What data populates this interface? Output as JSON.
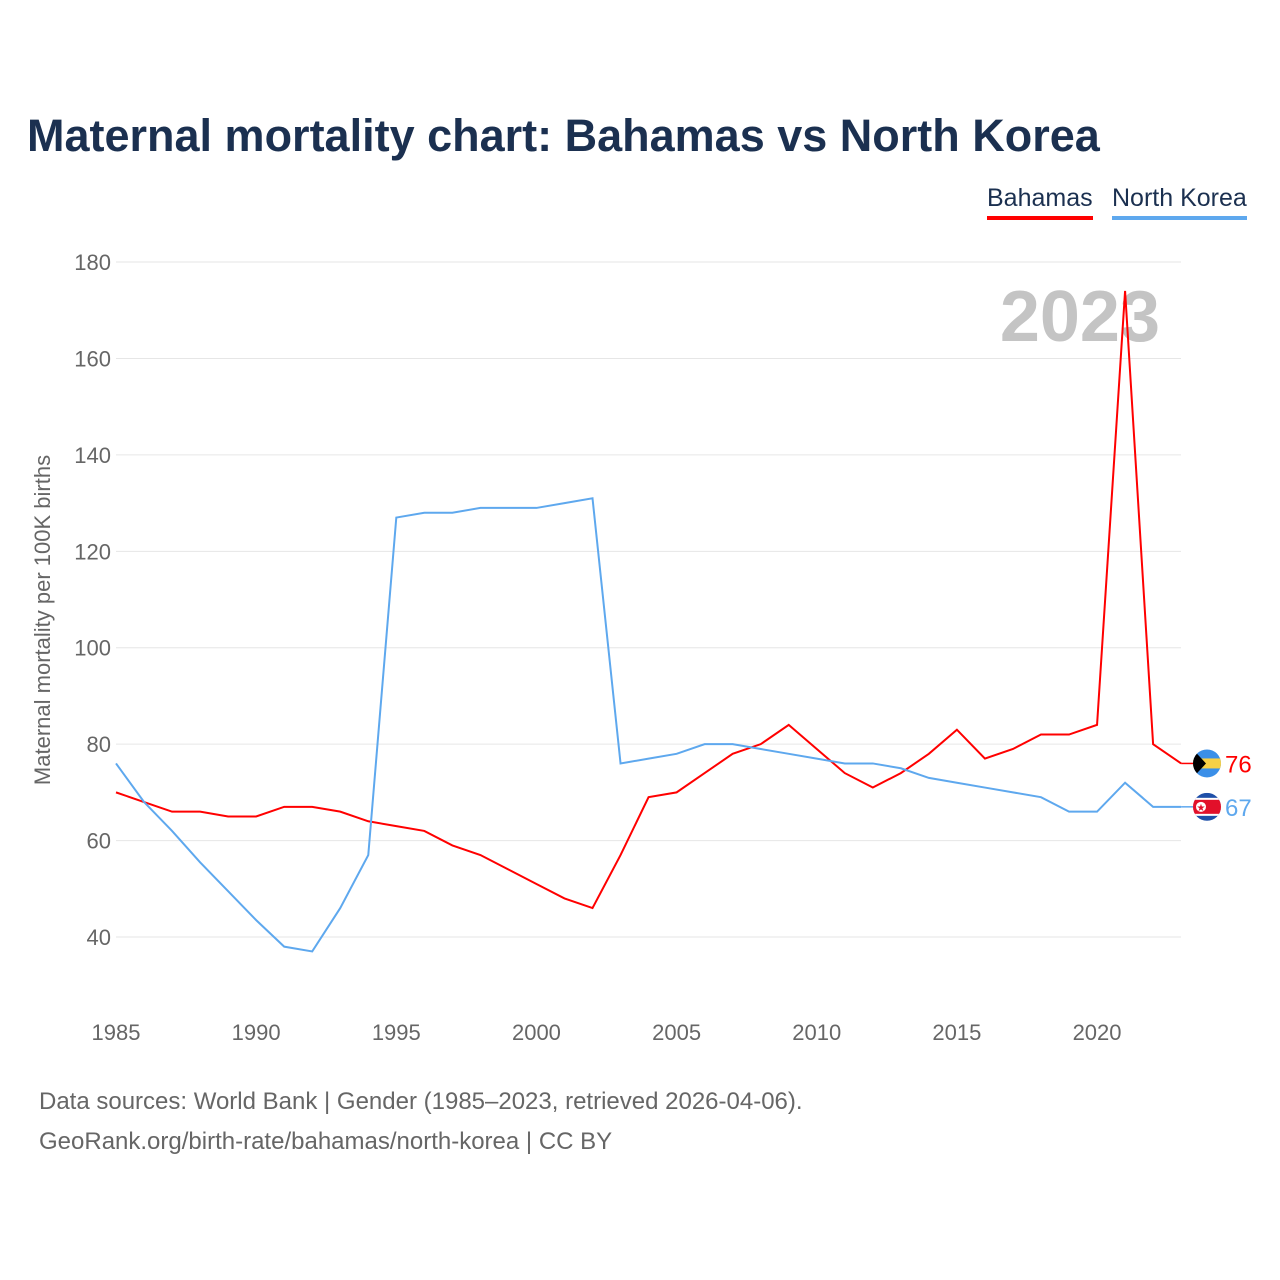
{
  "title": "Maternal mortality chart: Bahamas vs North Korea",
  "year_label": "2023",
  "sources": [
    "Data sources: World Bank | Gender (1985–2023, retrieved 2026-04-06).",
    "GeoRank.org/birth-rate/bahamas/north-korea | CC BY"
  ],
  "chart_data": {
    "type": "line",
    "title": "Maternal mortality chart: Bahamas vs North Korea",
    "xlabel": "",
    "ylabel": "Maternal mortality per 100K births",
    "xlim": [
      1985,
      2023
    ],
    "ylim": [
      30,
      180
    ],
    "xticks": [
      1985,
      1990,
      1995,
      2000,
      2005,
      2010,
      2015,
      2020
    ],
    "yticks": [
      40,
      60,
      80,
      100,
      120,
      140,
      160,
      180
    ],
    "legend_position": "top-right",
    "x": [
      1985,
      1986,
      1987,
      1988,
      1989,
      1990,
      1991,
      1992,
      1993,
      1994,
      1995,
      1996,
      1997,
      1998,
      1999,
      2000,
      2001,
      2002,
      2003,
      2004,
      2005,
      2006,
      2007,
      2008,
      2009,
      2010,
      2011,
      2012,
      2013,
      2014,
      2015,
      2016,
      2017,
      2018,
      2019,
      2020,
      2021,
      2022,
      2023
    ],
    "series": [
      {
        "name": "Bahamas",
        "color": "#ff0000",
        "end_label": "76",
        "values": [
          70,
          68,
          66,
          66,
          65,
          65,
          67,
          67,
          66,
          64,
          63,
          62,
          59,
          57,
          54,
          51,
          48,
          46,
          57,
          69,
          70,
          74,
          78,
          80,
          84,
          79,
          74,
          71,
          74,
          78,
          83,
          77,
          79,
          82,
          82,
          84,
          174,
          80,
          76
        ]
      },
      {
        "name": "North Korea",
        "color": "#5ea8ee",
        "end_label": "67",
        "values": [
          76,
          68,
          62,
          55.5,
          49.5,
          43.5,
          38,
          37,
          46,
          57,
          127,
          128,
          128,
          129,
          129,
          129,
          130,
          131,
          76,
          77,
          78,
          80,
          80,
          79,
          78,
          77,
          76,
          76,
          75,
          73,
          72,
          71,
          70,
          69,
          66,
          66,
          72,
          67,
          67
        ]
      }
    ]
  }
}
